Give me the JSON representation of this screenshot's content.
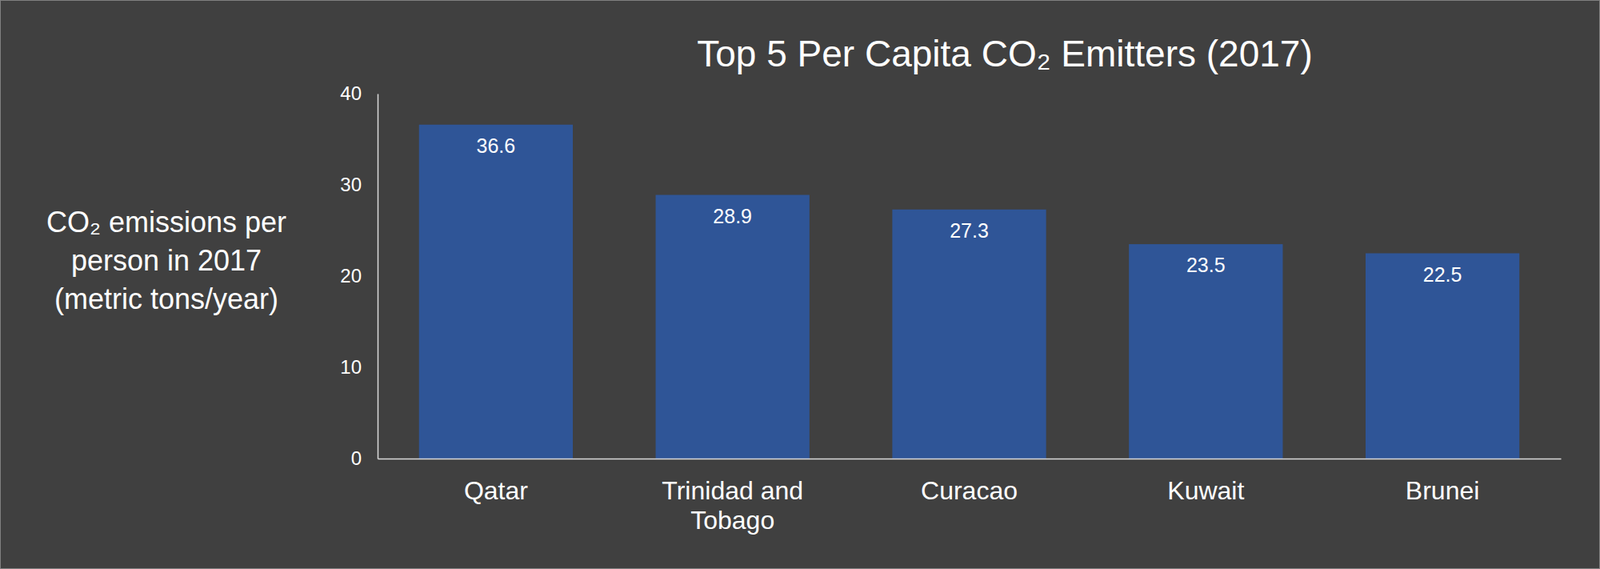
{
  "chart_data": {
    "type": "bar",
    "title": "Top 5 Per Capita CO₂ Emitters (2017)",
    "y_label": [
      "CO₂ emissions per",
      "person in 2017",
      "(metric tons/year)"
    ],
    "categories": [
      "Qatar",
      "Trinidad and Tobago",
      "Curacao",
      "Kuwait",
      "Brunei"
    ],
    "values": [
      36.6,
      28.9,
      27.3,
      23.5,
      22.5
    ],
    "color": "#2f5597",
    "ylim": [
      0,
      40
    ],
    "yticks": [
      0,
      10,
      20,
      30,
      40
    ],
    "grid": false,
    "data_labels": true
  }
}
